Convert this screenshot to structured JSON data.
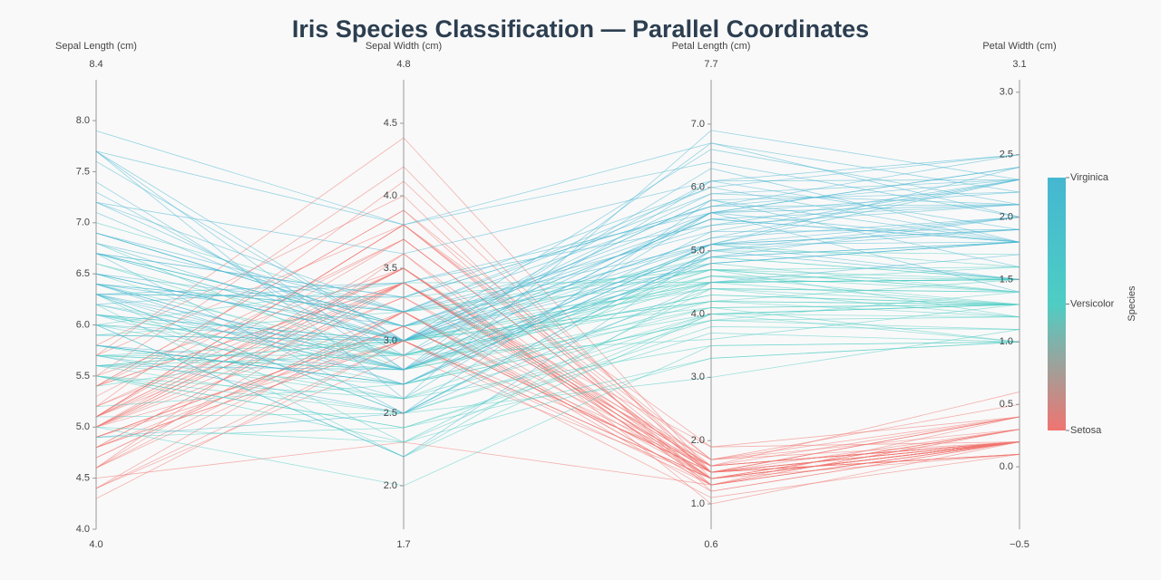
{
  "chart_data": {
    "type": "parallel",
    "title": "Iris Species Classification — Parallel Coordinates",
    "dimensions": [
      {
        "label": "Sepal Length (cm)",
        "range": [
          {
            "value": 4,
            "label": "4.0"
          },
          8.4
        ],
        "ticks": [
          {
            "value": 4,
            "label": "4.0"
          },
          4.5,
          {
            "value": 5,
            "label": "5.0"
          },
          5.5,
          {
            "value": 6,
            "label": "6.0"
          },
          6.5,
          {
            "value": 7,
            "label": "7.0"
          },
          7.5,
          {
            "value": 8,
            "label": "8.0"
          }
        ]
      },
      {
        "label": "Sepal Width (cm)",
        "range": [
          1.7,
          4.8
        ],
        "ticks": [
          {
            "value": 2,
            "label": "2.0"
          },
          2.5,
          {
            "value": 3,
            "label": "3.0"
          },
          3.5,
          {
            "value": 4,
            "label": "4.0"
          },
          4.5
        ]
      },
      {
        "label": "Petal Length (cm)",
        "range": [
          0.6,
          7.7
        ],
        "ticks": [
          {
            "value": 1,
            "label": "1.0"
          },
          {
            "value": 2,
            "label": "2.0"
          },
          {
            "value": 3,
            "label": "3.0"
          },
          {
            "value": 4,
            "label": "4.0"
          },
          {
            "value": 5,
            "label": "5.0"
          },
          {
            "value": 6,
            "label": "6.0"
          },
          {
            "value": 7,
            "label": "7.0"
          }
        ]
      },
      {
        "label": "Petal Width (cm)",
        "range": [
          {
            "value": -0.5,
            "label": "−0.5"
          },
          3.1
        ],
        "ticks": [
          {
            "value": 0,
            "label": "0.0"
          },
          0.5,
          {
            "value": 1,
            "label": "1.0"
          },
          1.5,
          {
            "value": 2,
            "label": "2.0"
          },
          2.5,
          {
            "value": 3,
            "label": "3.0"
          }
        ]
      }
    ],
    "colorscale": [
      [
        0,
        "#f07470"
      ],
      [
        0.5,
        "#4ecdc4"
      ],
      [
        1,
        "#45b7d1"
      ]
    ],
    "colorbar": {
      "title": "Species",
      "ticks": [
        {
          "value": 0,
          "label": "Setosa"
        },
        {
          "value": 1,
          "label": "Versicolor"
        },
        {
          "value": 2,
          "label": "Virginica"
        }
      ]
    },
    "class": [
      0,
      0,
      0,
      0,
      0,
      0,
      0,
      0,
      0,
      0,
      0,
      0,
      0,
      0,
      0,
      0,
      0,
      0,
      0,
      0,
      0,
      0,
      0,
      0,
      0,
      0,
      0,
      0,
      0,
      0,
      0,
      0,
      0,
      0,
      0,
      0,
      0,
      0,
      0,
      0,
      0,
      0,
      0,
      0,
      0,
      0,
      0,
      0,
      0,
      0,
      1,
      1,
      1,
      1,
      1,
      1,
      1,
      1,
      1,
      1,
      1,
      1,
      1,
      1,
      1,
      1,
      1,
      1,
      1,
      1,
      1,
      1,
      1,
      1,
      1,
      1,
      1,
      1,
      1,
      1,
      1,
      1,
      1,
      1,
      1,
      1,
      1,
      1,
      1,
      1,
      1,
      1,
      1,
      1,
      1,
      1,
      1,
      1,
      1,
      1,
      2,
      2,
      2,
      2,
      2,
      2,
      2,
      2,
      2,
      2,
      2,
      2,
      2,
      2,
      2,
      2,
      2,
      2,
      2,
      2,
      2,
      2,
      2,
      2,
      2,
      2,
      2,
      2,
      2,
      2,
      2,
      2,
      2,
      2,
      2,
      2,
      2,
      2,
      2,
      2,
      2,
      2,
      2,
      2,
      2,
      2,
      2,
      2,
      2,
      2
    ],
    "values": [
      [
        5.1,
        3.5,
        1.4,
        0.2
      ],
      [
        4.9,
        3.0,
        1.4,
        0.2
      ],
      [
        4.7,
        3.2,
        1.3,
        0.2
      ],
      [
        4.6,
        3.1,
        1.5,
        0.2
      ],
      [
        5.0,
        3.6,
        1.4,
        0.2
      ],
      [
        5.4,
        3.9,
        1.7,
        0.4
      ],
      [
        4.6,
        3.4,
        1.4,
        0.3
      ],
      [
        5.0,
        3.4,
        1.5,
        0.2
      ],
      [
        4.4,
        2.9,
        1.4,
        0.2
      ],
      [
        4.9,
        3.1,
        1.5,
        0.1
      ],
      [
        5.4,
        3.7,
        1.5,
        0.2
      ],
      [
        4.8,
        3.4,
        1.6,
        0.2
      ],
      [
        4.8,
        3.0,
        1.4,
        0.1
      ],
      [
        4.3,
        3.0,
        1.1,
        0.1
      ],
      [
        5.8,
        4.0,
        1.2,
        0.2
      ],
      [
        5.7,
        4.4,
        1.5,
        0.4
      ],
      [
        5.4,
        3.9,
        1.3,
        0.4
      ],
      [
        5.1,
        3.5,
        1.4,
        0.3
      ],
      [
        5.7,
        3.8,
        1.7,
        0.3
      ],
      [
        5.1,
        3.8,
        1.5,
        0.3
      ],
      [
        5.4,
        3.4,
        1.7,
        0.2
      ],
      [
        5.1,
        3.7,
        1.5,
        0.4
      ],
      [
        4.6,
        3.6,
        1.0,
        0.2
      ],
      [
        5.1,
        3.3,
        1.7,
        0.5
      ],
      [
        4.8,
        3.4,
        1.9,
        0.2
      ],
      [
        5.0,
        3.0,
        1.6,
        0.2
      ],
      [
        5.0,
        3.4,
        1.6,
        0.4
      ],
      [
        5.2,
        3.5,
        1.5,
        0.2
      ],
      [
        5.2,
        3.4,
        1.4,
        0.2
      ],
      [
        4.7,
        3.2,
        1.6,
        0.2
      ],
      [
        4.8,
        3.1,
        1.6,
        0.2
      ],
      [
        5.4,
        3.4,
        1.5,
        0.4
      ],
      [
        5.2,
        4.1,
        1.5,
        0.1
      ],
      [
        5.5,
        4.2,
        1.4,
        0.2
      ],
      [
        4.9,
        3.1,
        1.5,
        0.1
      ],
      [
        5.0,
        3.2,
        1.2,
        0.2
      ],
      [
        5.5,
        3.5,
        1.3,
        0.2
      ],
      [
        4.9,
        3.1,
        1.5,
        0.1
      ],
      [
        4.4,
        3.0,
        1.3,
        0.2
      ],
      [
        5.1,
        3.4,
        1.5,
        0.2
      ],
      [
        5.0,
        3.5,
        1.3,
        0.3
      ],
      [
        4.5,
        2.3,
        1.3,
        0.3
      ],
      [
        4.4,
        3.2,
        1.3,
        0.2
      ],
      [
        5.0,
        3.5,
        1.6,
        0.6
      ],
      [
        5.1,
        3.8,
        1.9,
        0.4
      ],
      [
        4.8,
        3.0,
        1.4,
        0.3
      ],
      [
        5.1,
        3.8,
        1.6,
        0.2
      ],
      [
        4.6,
        3.2,
        1.4,
        0.2
      ],
      [
        5.3,
        3.7,
        1.5,
        0.2
      ],
      [
        5.0,
        3.3,
        1.4,
        0.2
      ],
      [
        7.0,
        3.2,
        4.7,
        1.4
      ],
      [
        6.4,
        3.2,
        4.5,
        1.5
      ],
      [
        6.9,
        3.1,
        4.9,
        1.5
      ],
      [
        5.5,
        2.3,
        4.0,
        1.3
      ],
      [
        6.5,
        2.8,
        4.6,
        1.5
      ],
      [
        5.7,
        2.8,
        4.5,
        1.3
      ],
      [
        6.3,
        3.3,
        4.7,
        1.6
      ],
      [
        4.9,
        2.4,
        3.3,
        1.0
      ],
      [
        6.6,
        2.9,
        4.6,
        1.3
      ],
      [
        5.2,
        2.7,
        3.9,
        1.4
      ],
      [
        5.0,
        2.0,
        3.5,
        1.0
      ],
      [
        5.9,
        3.0,
        4.2,
        1.5
      ],
      [
        6.0,
        2.2,
        4.0,
        1.0
      ],
      [
        6.1,
        2.9,
        4.7,
        1.4
      ],
      [
        5.6,
        2.9,
        3.6,
        1.3
      ],
      [
        6.7,
        3.1,
        4.4,
        1.4
      ],
      [
        5.6,
        3.0,
        4.5,
        1.5
      ],
      [
        5.8,
        2.7,
        4.1,
        1.0
      ],
      [
        6.2,
        2.2,
        4.5,
        1.5
      ],
      [
        5.6,
        2.5,
        3.9,
        1.1
      ],
      [
        5.9,
        3.2,
        4.8,
        1.8
      ],
      [
        6.1,
        2.8,
        4.0,
        1.3
      ],
      [
        6.3,
        2.5,
        4.9,
        1.5
      ],
      [
        6.1,
        2.8,
        4.7,
        1.2
      ],
      [
        6.4,
        2.9,
        4.3,
        1.3
      ],
      [
        6.6,
        3.0,
        4.4,
        1.4
      ],
      [
        6.8,
        2.8,
        4.8,
        1.4
      ],
      [
        6.7,
        3.0,
        5.0,
        1.7
      ],
      [
        6.0,
        2.9,
        4.5,
        1.5
      ],
      [
        5.7,
        2.6,
        3.5,
        1.0
      ],
      [
        5.5,
        2.4,
        3.8,
        1.1
      ],
      [
        5.5,
        2.4,
        3.7,
        1.0
      ],
      [
        5.8,
        2.7,
        3.9,
        1.2
      ],
      [
        6.0,
        2.7,
        5.1,
        1.6
      ],
      [
        5.4,
        3.0,
        4.5,
        1.5
      ],
      [
        6.0,
        3.4,
        4.5,
        1.6
      ],
      [
        6.7,
        3.1,
        4.7,
        1.5
      ],
      [
        6.3,
        2.3,
        4.4,
        1.3
      ],
      [
        5.6,
        3.0,
        4.1,
        1.3
      ],
      [
        5.5,
        2.5,
        4.0,
        1.3
      ],
      [
        5.5,
        2.6,
        4.4,
        1.2
      ],
      [
        6.1,
        3.0,
        4.6,
        1.4
      ],
      [
        5.8,
        2.6,
        4.0,
        1.2
      ],
      [
        5.0,
        2.3,
        3.3,
        1.0
      ],
      [
        5.6,
        2.7,
        4.2,
        1.3
      ],
      [
        5.7,
        3.0,
        4.2,
        1.2
      ],
      [
        5.7,
        2.9,
        4.2,
        1.3
      ],
      [
        6.2,
        2.9,
        4.3,
        1.3
      ],
      [
        5.1,
        2.5,
        3.0,
        1.1
      ],
      [
        5.7,
        2.8,
        4.1,
        1.3
      ],
      [
        6.3,
        3.3,
        6.0,
        2.5
      ],
      [
        5.8,
        2.7,
        5.1,
        1.9
      ],
      [
        7.1,
        3.0,
        5.9,
        2.1
      ],
      [
        6.3,
        2.9,
        5.6,
        1.8
      ],
      [
        6.5,
        3.0,
        5.8,
        2.2
      ],
      [
        7.6,
        3.0,
        6.6,
        2.1
      ],
      [
        4.9,
        2.5,
        4.5,
        1.7
      ],
      [
        7.3,
        2.9,
        6.3,
        1.8
      ],
      [
        6.7,
        2.5,
        5.8,
        1.8
      ],
      [
        7.2,
        3.6,
        6.1,
        2.5
      ],
      [
        6.5,
        3.2,
        5.1,
        2.0
      ],
      [
        6.4,
        2.7,
        5.3,
        1.9
      ],
      [
        6.8,
        3.0,
        5.5,
        2.1
      ],
      [
        5.7,
        2.5,
        5.0,
        2.0
      ],
      [
        5.8,
        2.8,
        5.1,
        2.4
      ],
      [
        6.4,
        3.2,
        5.3,
        2.3
      ],
      [
        6.5,
        3.0,
        5.5,
        1.8
      ],
      [
        7.7,
        3.8,
        6.7,
        2.2
      ],
      [
        7.7,
        2.6,
        6.9,
        2.3
      ],
      [
        6.0,
        2.2,
        5.0,
        1.5
      ],
      [
        6.9,
        3.2,
        5.7,
        2.3
      ],
      [
        5.6,
        2.8,
        4.9,
        2.0
      ],
      [
        7.7,
        2.8,
        6.7,
        2.0
      ],
      [
        6.3,
        2.7,
        4.9,
        1.8
      ],
      [
        6.7,
        3.3,
        5.7,
        2.1
      ],
      [
        7.2,
        3.2,
        6.0,
        1.8
      ],
      [
        6.2,
        2.8,
        4.8,
        1.8
      ],
      [
        6.1,
        3.0,
        4.9,
        1.8
      ],
      [
        6.4,
        2.8,
        5.6,
        2.1
      ],
      [
        7.2,
        3.0,
        5.8,
        1.6
      ],
      [
        7.4,
        2.8,
        6.1,
        1.9
      ],
      [
        7.9,
        3.8,
        6.4,
        2.0
      ],
      [
        6.4,
        2.8,
        5.6,
        2.2
      ],
      [
        6.3,
        2.8,
        5.1,
        1.5
      ],
      [
        6.1,
        2.6,
        5.6,
        1.4
      ],
      [
        7.7,
        3.0,
        6.1,
        2.3
      ],
      [
        6.3,
        3.4,
        5.6,
        2.4
      ],
      [
        6.4,
        3.1,
        5.5,
        1.8
      ],
      [
        6.0,
        3.0,
        4.8,
        1.8
      ],
      [
        6.9,
        3.1,
        5.4,
        2.1
      ],
      [
        6.7,
        3.1,
        5.6,
        2.4
      ],
      [
        6.9,
        3.1,
        5.1,
        2.3
      ],
      [
        5.8,
        2.7,
        5.1,
        1.9
      ],
      [
        6.8,
        3.2,
        5.9,
        2.3
      ],
      [
        6.7,
        3.3,
        5.7,
        2.5
      ],
      [
        6.7,
        3.0,
        5.2,
        2.3
      ],
      [
        6.3,
        2.5,
        5.0,
        1.9
      ],
      [
        6.5,
        3.0,
        5.2,
        2.0
      ],
      [
        6.2,
        3.4,
        5.4,
        2.3
      ],
      [
        5.9,
        3.0,
        5.1,
        1.8
      ]
    ]
  }
}
